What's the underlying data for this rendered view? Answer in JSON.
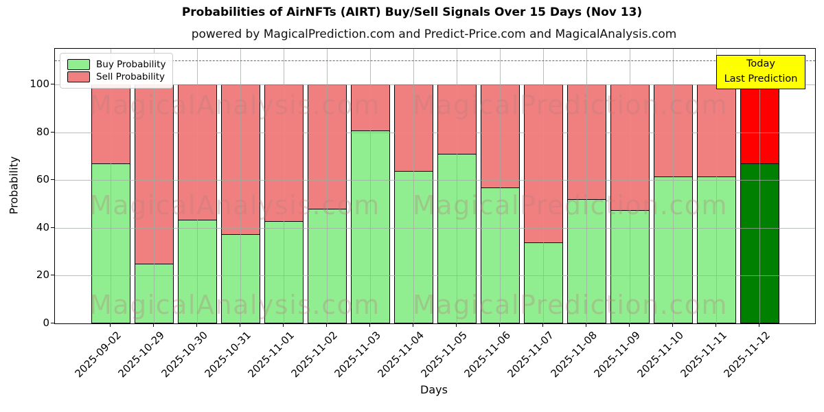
{
  "title": "Probabilities of AirNFTs (AIRT) Buy/Sell Signals Over 15 Days (Nov 13)",
  "subtitle": "powered by MagicalPrediction.com and Predict-Price.com and MagicalAnalysis.com",
  "legend": {
    "items": [
      {
        "label": "Buy Probability",
        "color": "#90ee90"
      },
      {
        "label": "Sell Probability",
        "color": "#f08080"
      }
    ]
  },
  "annotation": {
    "line1": "Today",
    "line2": "Last Prediction",
    "bg_color": "#ffff00"
  },
  "watermarks": {
    "left_text": "MagicalAnalysis.com",
    "right_text": "MagicalPrediction.com"
  },
  "axes": {
    "xlabel": "Days",
    "ylabel": "Probability",
    "yticks": [
      0,
      20,
      40,
      60,
      80,
      100
    ],
    "ylim": [
      0,
      115
    ],
    "dashed_line_value": 110
  },
  "colors": {
    "buy": "#90ee90",
    "sell": "#f08080",
    "today_buy": "#008000",
    "today_sell": "#ff0000",
    "bar_edge": "#000000"
  },
  "chart_data": {
    "type": "bar",
    "stacked": true,
    "title": "Probabilities of AirNFTs (AIRT) Buy/Sell Signals Over 15 Days (Nov 13)",
    "xlabel": "Days",
    "ylabel": "Probability",
    "ylim": [
      0,
      115
    ],
    "grid": true,
    "legend_position": "upper left",
    "categories": [
      "2025-09-02",
      "2025-10-29",
      "2025-10-30",
      "2025-10-31",
      "2025-11-01",
      "2025-11-02",
      "2025-11-03",
      "2025-11-04",
      "2025-11-05",
      "2025-11-06",
      "2025-11-07",
      "2025-11-08",
      "2025-11-09",
      "2025-11-10",
      "2025-11-11",
      "2025-11-12"
    ],
    "series": [
      {
        "name": "Buy Probability",
        "values": [
          67,
          25,
          43.5,
          37.5,
          43,
          48,
          81,
          64,
          71,
          57,
          34,
          52,
          47.5,
          61.5,
          61.5,
          67
        ]
      },
      {
        "name": "Sell Probability",
        "values": [
          33,
          75,
          56.5,
          62.5,
          57,
          52,
          19,
          36,
          29,
          43,
          66,
          48,
          52.5,
          38.5,
          38.5,
          33
        ]
      }
    ],
    "today_index": 15
  }
}
